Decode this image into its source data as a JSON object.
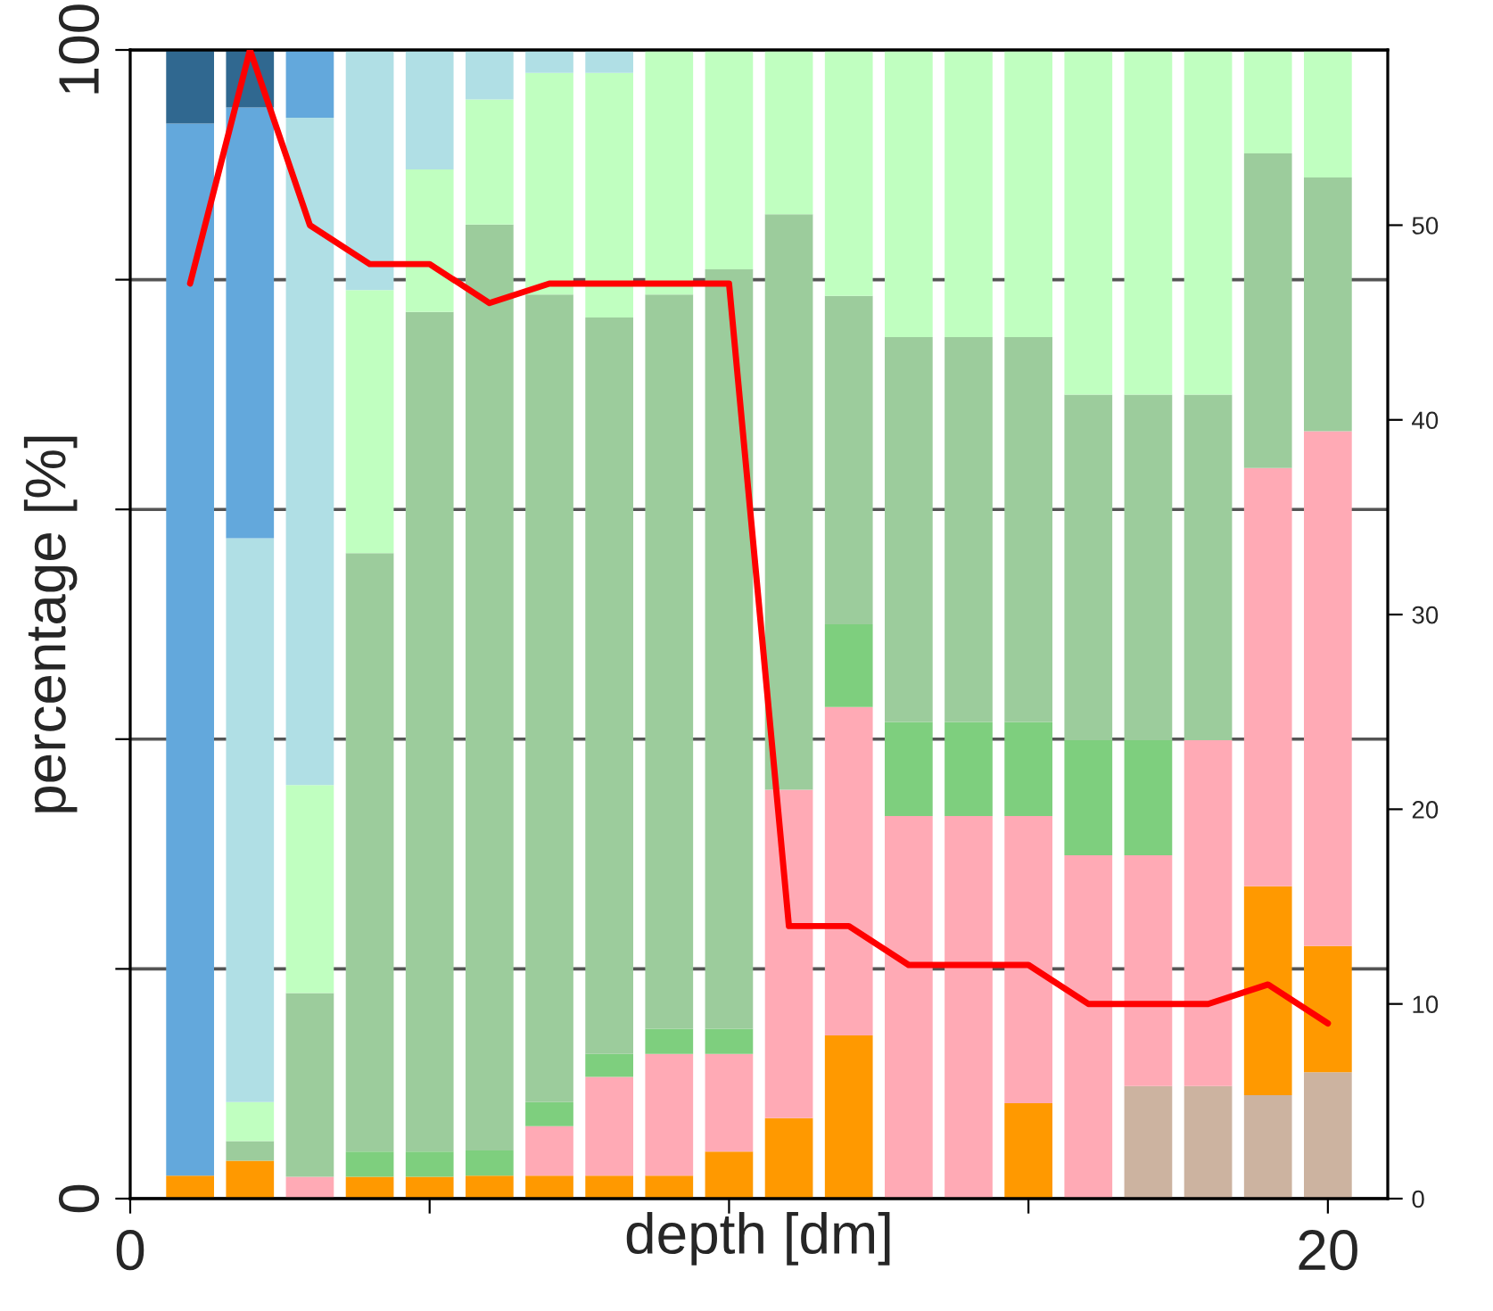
{
  "chart_data": {
    "type": "bar",
    "stacked": true,
    "xlabel": "depth [dm]",
    "ylabel": "percentage [%]",
    "x": [
      1,
      2,
      3,
      4,
      5,
      6,
      7,
      8,
      9,
      10,
      11,
      12,
      13,
      14,
      15,
      16,
      17,
      18,
      19,
      20
    ],
    "xlim": [
      0,
      21
    ],
    "xticks": [
      0,
      {
        "value": 5,
        "label": null
      },
      {
        "value": 10,
        "label": null
      },
      {
        "value": 15,
        "label": null
      },
      20
    ],
    "ylim": [
      0,
      100
    ],
    "yticks": [
      0,
      {
        "value": 20,
        "label": null
      },
      {
        "value": 40,
        "label": null
      },
      {
        "value": 60,
        "label": null
      },
      {
        "value": 80,
        "label": null
      },
      100
    ],
    "y2lim": [
      0,
      59
    ],
    "y2ticks": [
      0,
      10,
      20,
      30,
      40,
      50
    ],
    "grid": "y",
    "legend": false,
    "series": [
      {
        "color": "#ccb3a0",
        "values": [
          0,
          0,
          0,
          0,
          0,
          0,
          0,
          0,
          0,
          0,
          0,
          0,
          0,
          0,
          0,
          0,
          9.8,
          9.8,
          9.0,
          11.0
        ]
      },
      {
        "color": "#ff9900",
        "values": [
          2.0,
          3.3,
          0,
          1.9,
          1.9,
          2.0,
          2.0,
          2.0,
          2.0,
          4.1,
          7.0,
          14.2,
          0,
          0,
          8.3,
          0,
          0,
          0,
          18.2,
          11.0
        ]
      },
      {
        "color": "#ffaab5",
        "values": [
          0,
          0,
          1.9,
          0,
          0,
          0,
          4.3,
          8.6,
          10.6,
          8.5,
          28.6,
          28.6,
          33.3,
          33.3,
          25.0,
          29.9,
          20.1,
          30.1,
          36.4,
          44.8
        ]
      },
      {
        "color": "#7ecf7e",
        "values": [
          0,
          0,
          0,
          2.2,
          2.2,
          2.2,
          2.1,
          2.0,
          2.2,
          2.2,
          0,
          7.2,
          8.2,
          8.2,
          8.2,
          10.0,
          10.0,
          0,
          0,
          0
        ]
      },
      {
        "color": "#9ccc9c",
        "values": [
          0,
          1.7,
          16.0,
          52.1,
          73.1,
          80.6,
          70.3,
          64.1,
          63.9,
          66.1,
          50.1,
          28.6,
          33.5,
          33.5,
          33.5,
          30.1,
          30.1,
          30.1,
          27.4,
          22.1
        ]
      },
      {
        "color": "#c0ffc0",
        "values": [
          0,
          3.4,
          18.1,
          22.9,
          12.4,
          10.9,
          19.3,
          21.3,
          21.3,
          19.1,
          14.3,
          21.4,
          25.0,
          25.0,
          25.0,
          30.0,
          30.0,
          30.0,
          9.0,
          11.1
        ]
      },
      {
        "color": "#b0dfe5",
        "values": [
          0,
          49.1,
          58.1,
          20.9,
          10.4,
          4.3,
          2.0,
          2.0,
          0,
          0,
          0,
          0,
          0,
          0,
          0,
          0,
          0,
          0,
          0,
          0
        ]
      },
      {
        "color": "#63a8dc",
        "values": [
          91.6,
          37.5,
          5.9,
          0,
          0,
          0,
          0,
          0,
          0,
          0,
          0,
          0,
          0,
          0,
          0,
          0,
          0,
          0,
          0,
          0
        ]
      },
      {
        "color": "#306890",
        "values": [
          6.4,
          5.0,
          0,
          0,
          0,
          0,
          0,
          0,
          0,
          0,
          0,
          0,
          0,
          0,
          0,
          0,
          0,
          0,
          0,
          0
        ]
      },
      {
        "type": "line",
        "axis": "y2",
        "color": "#ff0000",
        "values": [
          47,
          59,
          50,
          48,
          48,
          46,
          47,
          47,
          47,
          47,
          14,
          14,
          12,
          12,
          12,
          10,
          10,
          10,
          11,
          9
        ]
      }
    ]
  }
}
